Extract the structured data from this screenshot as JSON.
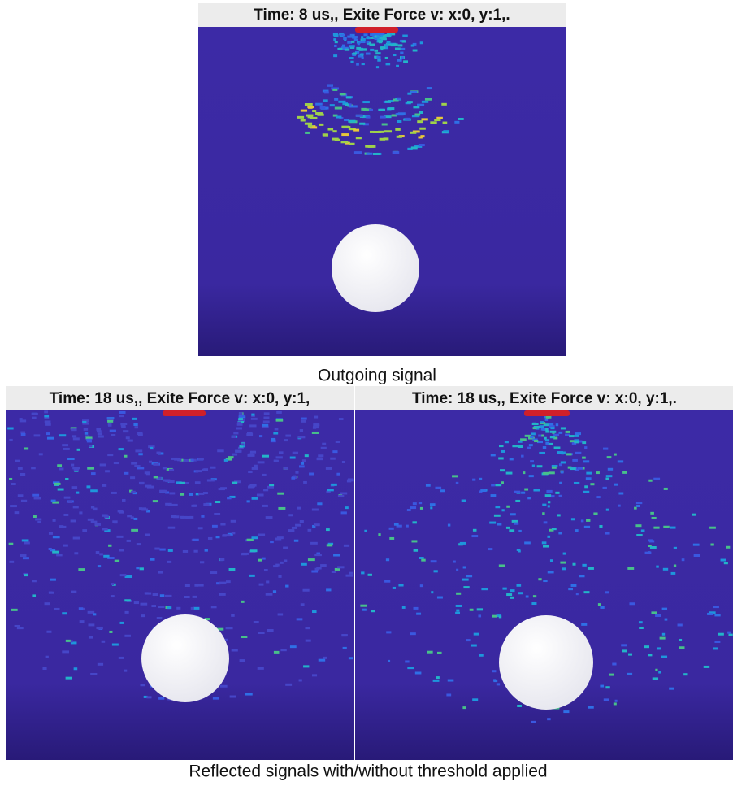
{
  "figure_top": {
    "panel_title": "Time: 8 us,, Exite Force v: x:0, y:1,.",
    "caption": "Outgoing signal"
  },
  "figure_bottom": {
    "panels": [
      {
        "panel_title": "Time: 18 us,, Exite Force v: x:0, y:1,"
      },
      {
        "panel_title": "Time: 18 us,, Exite Force v: x:0, y:1,."
      }
    ],
    "caption": "Reflected signals with/without threshold applied"
  }
}
